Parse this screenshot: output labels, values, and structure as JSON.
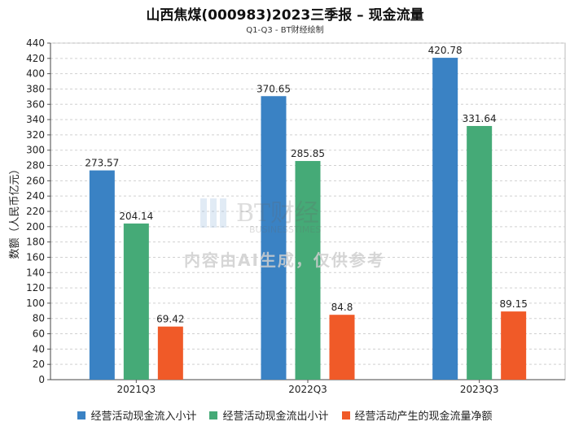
{
  "header": {
    "title": "山西焦煤(000983)2023三季报 – 现金流量",
    "subtitle": "Q1-Q3 - BT财经绘制"
  },
  "watermark": {
    "logo_text": "BT财经",
    "logo_sub": "BUSINESSTIMES",
    "notice": "内容由AI生成，仅供参考"
  },
  "chart_data": {
    "type": "bar",
    "title": "山西焦煤(000983)2023三季报 – 现金流量",
    "subtitle": "Q1-Q3 - BT财经绘制",
    "xlabel": "",
    "ylabel": "数额（人民币亿元）",
    "ylim": [
      0,
      440
    ],
    "ytick_step": 20,
    "grid": true,
    "legend_position": "bottom",
    "categories": [
      "2021Q3",
      "2022Q3",
      "2023Q3"
    ],
    "series": [
      {
        "name": "经营活动现金流入小计",
        "color": "#3a82c4",
        "values": [
          273.57,
          370.65,
          420.78
        ],
        "labels": [
          "273.57",
          "370.65",
          "420.78"
        ]
      },
      {
        "name": "经营活动现金流出小计",
        "color": "#45aa77",
        "values": [
          204.14,
          285.85,
          331.64
        ],
        "labels": [
          "204.14",
          "285.85",
          "331.64"
        ]
      },
      {
        "name": "经营活动产生的现金流量净额",
        "color": "#f05a28",
        "values": [
          69.42,
          84.8,
          89.15
        ],
        "labels": [
          "69.42",
          "84.8",
          "89.15"
        ]
      }
    ]
  }
}
